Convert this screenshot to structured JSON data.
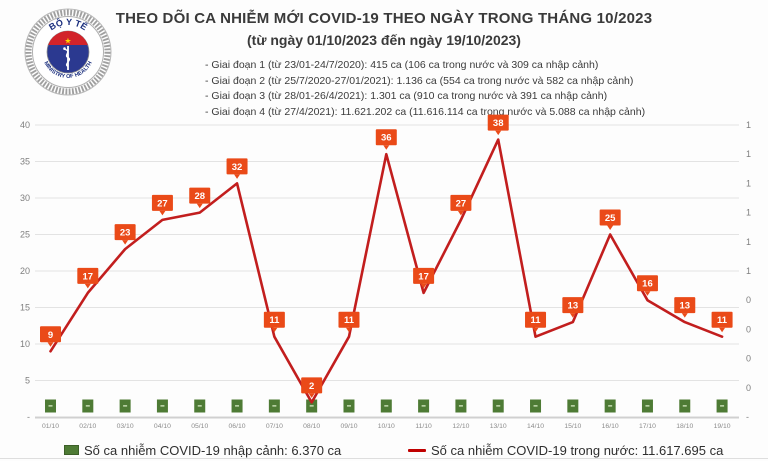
{
  "header": {
    "title": "THEO DÕI CA NHIỄM MỚI COVID-19 THEO NGÀY TRONG THÁNG 10/2023",
    "subtitle": "(từ ngày 01/10/2023 đến ngày 19/10/2023)",
    "bullets": [
      "- Giai đoạn 1 (từ 23/01-24/7/2020): 415 ca (106 ca trong nước và 309 ca nhập cảnh)",
      "- Giai đoạn 2 (từ 25/7/2020-27/01/2021): 1.136 ca (554 ca trong nước và 582 ca nhập cảnh)",
      "- Giai đoạn 3 (từ 28/01-26/4/2021): 1.301 ca (910 ca trong nước và 391 ca nhập cảnh)",
      "- Giai đoạn 4 (từ 27/4/2021): 11.621.202 ca (11.616.114 ca trong nước và 5.088 ca nhập cảnh)"
    ],
    "logo": {
      "top_text": "BỘ Y TẾ",
      "bottom_text": "MINISTRY OF HEALTH"
    }
  },
  "chart_data": {
    "type": "line",
    "title": "THEO DÕI CA NHIỄM MỚI COVID-19 THEO NGÀY TRONG THÁNG 10/2023",
    "categories": [
      "01/10",
      "02/10",
      "03/10",
      "04/10",
      "05/10",
      "06/10",
      "07/10",
      "08/10",
      "09/10",
      "10/10",
      "11/10",
      "12/10",
      "13/10",
      "14/10",
      "15/10",
      "16/10",
      "17/10",
      "18/10",
      "19/10"
    ],
    "series": [
      {
        "name": "Số ca nhiễm COVID-19 trong nước",
        "type": "line",
        "color": "#c21e1e",
        "label_bg": "#ea4a18",
        "values": [
          9,
          17,
          23,
          27,
          28,
          32,
          11,
          2,
          11,
          36,
          17,
          27,
          38,
          11,
          13,
          25,
          16,
          13,
          11
        ]
      },
      {
        "name": "Số ca nhiễm COVID-19 nhập cảnh",
        "type": "bar",
        "color": "#4e7b35",
        "value_display": "-",
        "values": [
          0,
          0,
          0,
          0,
          0,
          0,
          0,
          0,
          0,
          0,
          0,
          0,
          0,
          0,
          0,
          0,
          0,
          0,
          0
        ]
      }
    ],
    "left_axis": {
      "min": 0,
      "max": 40,
      "tick_step": 5,
      "tick_labels_top_to_bottom": [
        "40",
        "35",
        "30",
        "25",
        "20",
        "15",
        "10",
        "5",
        "-"
      ]
    },
    "right_axis": {
      "min": 0,
      "max": 1,
      "tick_labels_top_to_bottom": [
        "1",
        "1",
        "1",
        "1",
        "1",
        "1",
        "0",
        "0",
        "0",
        "0",
        "-"
      ]
    },
    "grid": true,
    "legend_position": "bottom"
  },
  "legend": {
    "items": [
      {
        "swatch": "green-square",
        "color": "#4e7b35",
        "label": "Số ca nhiễm COVID-19 nhập cảnh: 6.370 ca"
      },
      {
        "swatch": "red-line",
        "color": "#c00000",
        "label": "Số ca nhiễm COVID-19 trong nước: 11.617.695 ca"
      }
    ]
  },
  "colors": {
    "line_red": "#c21e1e",
    "label_box": "#ea4a18",
    "bar_green": "#4e7b35",
    "logo_blue": "#2b3990",
    "logo_red": "#d2232a",
    "star_yellow": "#ffd500",
    "grid": "#e3e3e3",
    "axis_text": "#7f7f7f"
  }
}
